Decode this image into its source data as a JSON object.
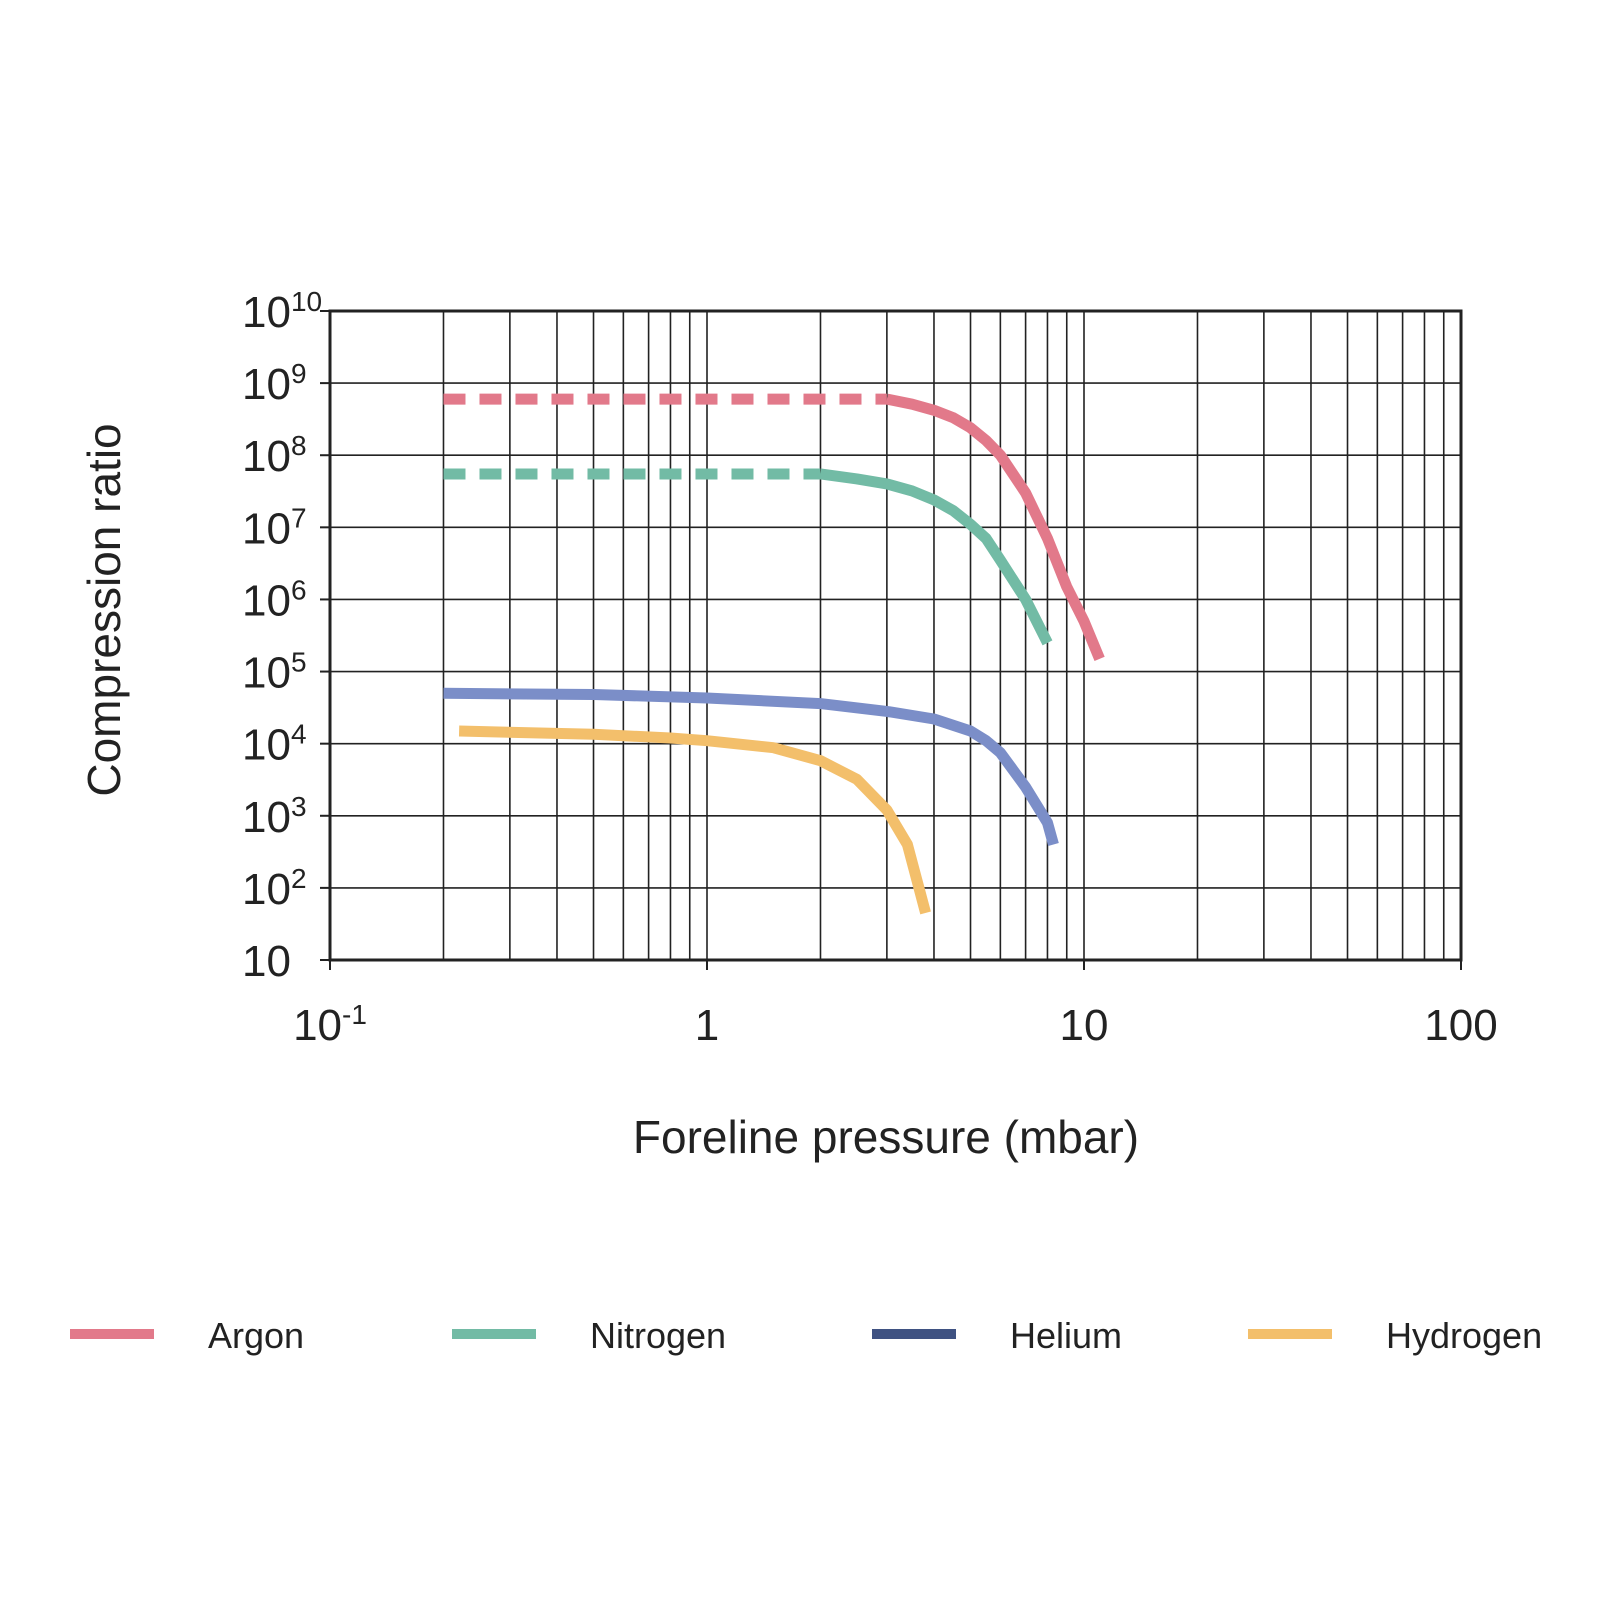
{
  "chart_data": {
    "type": "line",
    "title": "",
    "xlabel": "Foreline pressure (mbar)",
    "ylabel": "Compression ratio",
    "x_scale": "log",
    "y_scale": "log",
    "xlim": [
      0.1,
      100
    ],
    "ylim": [
      10,
      10000000000
    ],
    "grid": true,
    "legend_position": "bottom",
    "x_ticks": [
      {
        "value": 0.1,
        "base": "10",
        "exp": "-1"
      },
      {
        "value": 1,
        "base": "1",
        "exp": ""
      },
      {
        "value": 10,
        "base": "10",
        "exp": ""
      },
      {
        "value": 100,
        "base": "100",
        "exp": ""
      }
    ],
    "y_ticks": [
      {
        "value": 10,
        "base": "10",
        "exp": ""
      },
      {
        "value": 100,
        "base": "10",
        "exp": "2"
      },
      {
        "value": 1000,
        "base": "10",
        "exp": "3"
      },
      {
        "value": 10000,
        "base": "10",
        "exp": "4"
      },
      {
        "value": 100000,
        "base": "10",
        "exp": "5"
      },
      {
        "value": 1000000,
        "base": "10",
        "exp": "6"
      },
      {
        "value": 10000000,
        "base": "10",
        "exp": "7"
      },
      {
        "value": 100000000,
        "base": "10",
        "exp": "8"
      },
      {
        "value": 1000000000,
        "base": "10",
        "exp": "9"
      },
      {
        "value": 10000000000,
        "base": "10",
        "exp": "10"
      }
    ],
    "series": [
      {
        "name": "Argon",
        "color": "#e2798a",
        "legend_color": "#e2798a",
        "dashed_x": [
          0.2,
          3.0
        ],
        "x": [
          3.0,
          3.5,
          4.0,
          4.5,
          5.0,
          5.5,
          6.0,
          7.0,
          8.0,
          9.0,
          10.0,
          11.0
        ],
        "y": [
          600000000,
          510000000,
          420000000,
          330000000,
          240000000,
          160000000,
          100000000,
          30000000,
          7000000,
          1500000,
          500000,
          150000
        ]
      },
      {
        "name": "Nitrogen",
        "color": "#72bba5",
        "legend_color": "#72bba5",
        "dashed_x": [
          0.2,
          2.0
        ],
        "x": [
          2.0,
          2.5,
          3.0,
          3.5,
          4.0,
          4.5,
          5.0,
          5.5,
          6.0,
          7.0,
          8.0
        ],
        "y": [
          55000000,
          47000000,
          40000000,
          32000000,
          24000000,
          17000000,
          11000000,
          7000000,
          3500000,
          1000000,
          250000
        ]
      },
      {
        "name": "Helium",
        "color": "#7b8ec8",
        "legend_color": "#3f5282",
        "dashed_x": [],
        "x": [
          0.2,
          0.5,
          1.0,
          2.0,
          3.0,
          4.0,
          5.0,
          5.5,
          6.0,
          7.0,
          8.0,
          8.3
        ],
        "y": [
          50000,
          48000,
          43000,
          36000,
          28000,
          22000,
          15000,
          11000,
          7500,
          2500,
          800,
          400
        ]
      },
      {
        "name": "Hydrogen",
        "color": "#f3bf6b",
        "legend_color": "#f3bf6b",
        "dashed_x": [],
        "x": [
          0.22,
          0.5,
          0.8,
          1.0,
          1.5,
          2.0,
          2.5,
          3.0,
          3.4,
          3.8
        ],
        "y": [
          15000,
          13500,
          12000,
          11000,
          8800,
          5800,
          3200,
          1200,
          400,
          45
        ]
      }
    ]
  }
}
